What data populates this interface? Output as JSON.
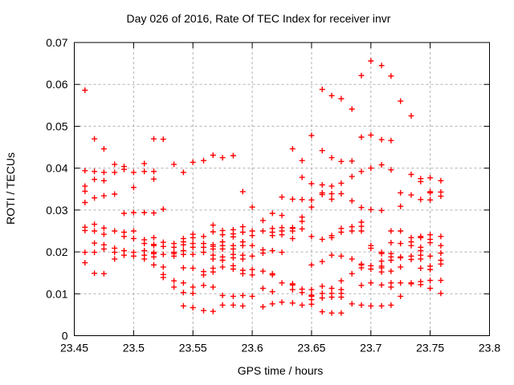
{
  "window": {
    "background": "#ffffff"
  },
  "chart_data": {
    "type": "scatter",
    "title": "Day 026 of 2016, Rate Of TEC Index for receiver invr",
    "xlabel": "GPS time / hours",
    "ylabel": "ROTI / TECUs",
    "xlim": [
      23.45,
      23.8
    ],
    "ylim": [
      0,
      0.07
    ],
    "xticks": {
      "values": [
        23.45,
        23.5,
        23.55,
        23.6,
        23.65,
        23.7,
        23.75,
        23.8
      ],
      "labels": [
        "23.45",
        "23.5",
        "23.55",
        "23.6",
        "23.65",
        "23.7",
        "23.75",
        "23.8"
      ]
    },
    "yticks": {
      "values": [
        0,
        0.01,
        0.02,
        0.03,
        0.04,
        0.05,
        0.06,
        0.07
      ],
      "labels": [
        "0",
        "0.01",
        "0.02",
        "0.03",
        "0.04",
        "0.05",
        "0.06",
        "0.07"
      ]
    },
    "grid": true,
    "grid_color": "#b0b0b0",
    "axis_color": "#000000",
    "legend": null,
    "marker": {
      "shape": "plus",
      "color": "#ff0000",
      "size": 7
    },
    "series": [
      {
        "name": "ROTI",
        "epochs": [
          {
            "t": 23.459,
            "roti": [
              0.0586,
              0.0394,
              0.0357,
              0.0345,
              0.0318,
              0.0259,
              0.0251,
              0.0199,
              0.0174
            ]
          },
          {
            "t": 23.467,
            "roti": [
              0.047,
              0.0392,
              0.0373,
              0.0329,
              0.0266,
              0.025,
              0.0221,
              0.0199,
              0.0149
            ]
          },
          {
            "t": 23.475,
            "roti": [
              0.0446,
              0.039,
              0.037,
              0.0334,
              0.0257,
              0.0242,
              0.0217,
              0.0207,
              0.0148
            ]
          },
          {
            "t": 23.484,
            "roti": [
              0.0409,
              0.039,
              0.0338,
              0.025,
              0.0209,
              0.0199,
              0.0183
            ]
          },
          {
            "t": 23.492,
            "roti": [
              0.0404,
              0.0397,
              0.0292,
              0.0247,
              0.0237,
              0.0203,
              0.0192
            ]
          },
          {
            "t": 23.5,
            "roti": [
              0.039,
              0.0354,
              0.0294,
              0.025,
              0.0232,
              0.0199,
              0.019
            ]
          },
          {
            "t": 23.509,
            "roti": [
              0.0411,
              0.0392,
              0.0294,
              0.0229,
              0.022,
              0.0203,
              0.0192,
              0.0183
            ]
          },
          {
            "t": 23.517,
            "roti": [
              0.047,
              0.0392,
              0.0374,
              0.0293,
              0.0234,
              0.0218,
              0.0215,
              0.0199,
              0.0196,
              0.0188,
              0.0169
            ]
          },
          {
            "t": 23.525,
            "roti": [
              0.0469,
              0.0302,
              0.0223,
              0.0213,
              0.0194,
              0.0164,
              0.0146,
              0.0139
            ]
          },
          {
            "t": 23.534,
            "roti": [
              0.0409,
              0.022,
              0.0211,
              0.0199,
              0.0196,
              0.019,
              0.0131,
              0.0116
            ]
          },
          {
            "t": 23.542,
            "roti": [
              0.039,
              0.0232,
              0.0224,
              0.0217,
              0.0203,
              0.0194,
              0.0162,
              0.0126,
              0.0103,
              0.0071
            ]
          },
          {
            "t": 23.55,
            "roti": [
              0.0414,
              0.0242,
              0.0234,
              0.022,
              0.0211,
              0.0194,
              0.0161,
              0.0116,
              0.0101,
              0.0067
            ]
          },
          {
            "t": 23.559,
            "roti": [
              0.0418,
              0.0237,
              0.022,
              0.0211,
              0.0199,
              0.0153,
              0.0145,
              0.012,
              0.006
            ]
          },
          {
            "t": 23.567,
            "roti": [
              0.0431,
              0.0264,
              0.0248,
              0.0217,
              0.0213,
              0.0207,
              0.0192,
              0.0183,
              0.0161,
              0.0152,
              0.0116,
              0.0058
            ]
          },
          {
            "t": 23.575,
            "roti": [
              0.0425,
              0.0251,
              0.0241,
              0.0224,
              0.0215,
              0.0207,
              0.0188,
              0.018,
              0.0164,
              0.0096,
              0.0073
            ]
          },
          {
            "t": 23.584,
            "roti": [
              0.043,
              0.0253,
              0.0243,
              0.0236,
              0.0215,
              0.0207,
              0.0194,
              0.0186,
              0.0167,
              0.0159,
              0.0094,
              0.0073
            ]
          },
          {
            "t": 23.592,
            "roti": [
              0.0344,
              0.026,
              0.0247,
              0.0224,
              0.0215,
              0.0192,
              0.0183,
              0.0156,
              0.0148,
              0.0096,
              0.0071
            ]
          },
          {
            "t": 23.6,
            "roti": [
              0.0307,
              0.025,
              0.0239,
              0.0215,
              0.019,
              0.0158,
              0.0145,
              0.0094
            ]
          },
          {
            "t": 23.609,
            "roti": [
              0.0275,
              0.025,
              0.0205,
              0.0197,
              0.0154,
              0.0113,
              0.0069
            ]
          },
          {
            "t": 23.617,
            "roti": [
              0.0292,
              0.0256,
              0.0247,
              0.0239,
              0.0203,
              0.0148,
              0.0145,
              0.0105,
              0.0076
            ]
          },
          {
            "t": 23.625,
            "roti": [
              0.0331,
              0.0287,
              0.0258,
              0.025,
              0.0241,
              0.0199,
              0.0126,
              0.008
            ]
          },
          {
            "t": 23.634,
            "roti": [
              0.0446,
              0.0326,
              0.0258,
              0.0256,
              0.025,
              0.0232,
              0.0124,
              0.0121,
              0.011,
              0.0078
            ]
          },
          {
            "t": 23.642,
            "roti": [
              0.0418,
              0.0378,
              0.0325,
              0.0283,
              0.0273,
              0.0255,
              0.0111,
              0.0103,
              0.0073
            ]
          },
          {
            "t": 23.65,
            "roti": [
              0.0478,
              0.0363,
              0.0324,
              0.0307,
              0.0237,
              0.0169,
              0.011,
              0.0097,
              0.0094,
              0.0086,
              0.0075
            ]
          },
          {
            "t": 23.659,
            "roti": [
              0.0588,
              0.0442,
              0.036,
              0.0341,
              0.0337,
              0.023,
              0.0177,
              0.0118,
              0.0101,
              0.009,
              0.0057
            ]
          },
          {
            "t": 23.667,
            "roti": [
              0.0573,
              0.0425,
              0.0357,
              0.0339,
              0.0326,
              0.0239,
              0.0234,
              0.0192,
              0.0113,
              0.0101,
              0.0092,
              0.0054
            ]
          },
          {
            "t": 23.675,
            "roti": [
              0.0566,
              0.0416,
              0.0364,
              0.0339,
              0.0256,
              0.0247,
              0.019,
              0.0131,
              0.011,
              0.0101,
              0.0092,
              0.0054
            ]
          },
          {
            "t": 23.684,
            "roti": [
              0.0541,
              0.0417,
              0.038,
              0.0322,
              0.026,
              0.025,
              0.0183,
              0.0148,
              0.0076
            ]
          },
          {
            "t": 23.692,
            "roti": [
              0.0621,
              0.0474,
              0.0392,
              0.0306,
              0.0271,
              0.0261,
              0.025,
              0.0171,
              0.0169,
              0.0162,
              0.012,
              0.0073
            ]
          },
          {
            "t": 23.7,
            "roti": [
              0.0656,
              0.0479,
              0.04,
              0.0301,
              0.0215,
              0.0209,
              0.0167,
              0.0159,
              0.0126,
              0.0071
            ]
          },
          {
            "t": 23.709,
            "roti": [
              0.0645,
              0.0468,
              0.0408,
              0.0299,
              0.0199,
              0.0196,
              0.0178,
              0.0166,
              0.0162,
              0.0152,
              0.0121,
              0.0071
            ]
          },
          {
            "t": 23.717,
            "roti": [
              0.062,
              0.0466,
              0.0396,
              0.025,
              0.0222,
              0.0196,
              0.0188,
              0.018,
              0.0154,
              0.0126,
              0.0116,
              0.0073
            ]
          },
          {
            "t": 23.725,
            "roti": [
              0.056,
              0.0341,
              0.0309,
              0.025,
              0.022,
              0.0188,
              0.0186,
              0.0164,
              0.0126,
              0.0094
            ]
          },
          {
            "t": 23.734,
            "roti": [
              0.0525,
              0.0385,
              0.0336,
              0.0234,
              0.0224,
              0.0215,
              0.019,
              0.0182,
              0.0126,
              0.0124
            ]
          },
          {
            "t": 23.742,
            "roti": [
              0.0375,
              0.0368,
              0.0325,
              0.0237,
              0.0234,
              0.0211,
              0.0203,
              0.0192,
              0.0183,
              0.0161,
              0.0129,
              0.0122
            ]
          },
          {
            "t": 23.75,
            "roti": [
              0.0377,
              0.0344,
              0.0341,
              0.0324,
              0.0241,
              0.023,
              0.0222,
              0.019,
              0.0166,
              0.0158,
              0.0132,
              0.0113
            ]
          },
          {
            "t": 23.759,
            "roti": [
              0.037,
              0.0343,
              0.0333,
              0.0237,
              0.0215,
              0.0197,
              0.018,
              0.0171,
              0.0132,
              0.0101
            ]
          }
        ]
      }
    ]
  }
}
